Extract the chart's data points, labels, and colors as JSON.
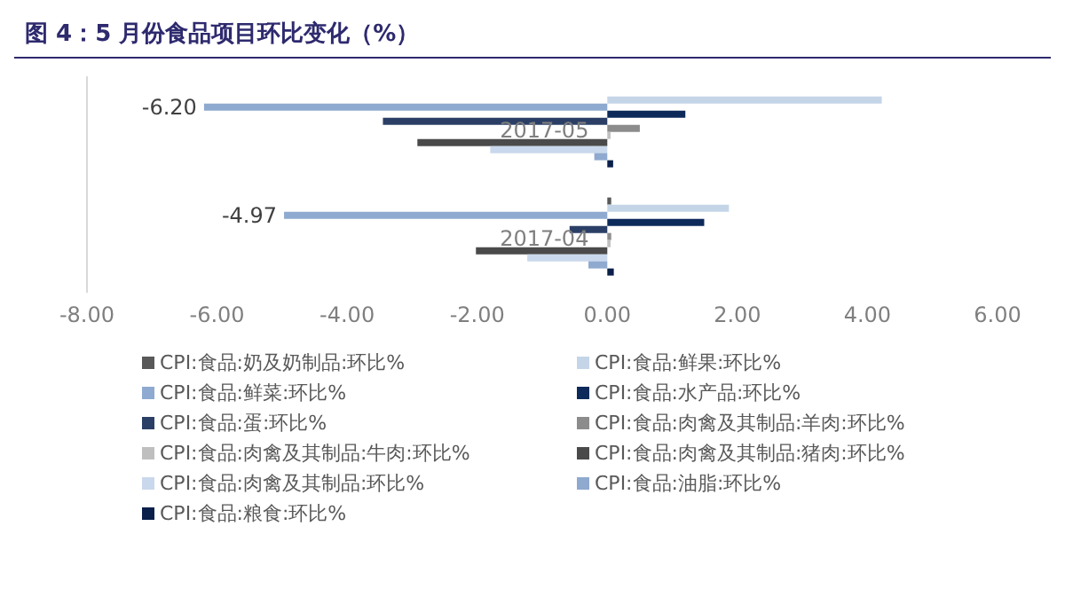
{
  "chart_data": {
    "type": "bar",
    "orientation": "horizontal",
    "title": "图 4：5 月份食品项目环比变化（%）",
    "categories": [
      "2017-05",
      "2017-04"
    ],
    "series": [
      {
        "name": "CPI:食品:奶及奶制品:环比%",
        "color": "#595959",
        "values": [
          0,
          0.06
        ]
      },
      {
        "name": "CPI:食品:鲜果:环比%",
        "color": "#c5d5e8",
        "values": [
          4.22,
          1.87
        ]
      },
      {
        "name": "CPI:食品:鲜菜:环比%",
        "color": "#8eaad0",
        "values": [
          -6.2,
          -4.97
        ],
        "value_labels": [
          "-6.20",
          "-4.97"
        ]
      },
      {
        "name": "CPI:食品:水产品:环比%",
        "color": "#0d2a5a",
        "values": [
          1.2,
          1.49
        ]
      },
      {
        "name": "CPI:食品:蛋:环比%",
        "color": "#2b3f66",
        "values": [
          -3.45,
          -0.58
        ]
      },
      {
        "name": "CPI:食品:肉禽及其制品:羊肉:环比%",
        "color": "#8c8c8c",
        "values": [
          0.5,
          0.06
        ]
      },
      {
        "name": "CPI:食品:肉禽及其制品:牛肉:环比%",
        "color": "#bfbfbf",
        "values": [
          0.05,
          0.05
        ]
      },
      {
        "name": "CPI:食品:肉禽及其制品:猪肉:环比%",
        "color": "#4a4a4a",
        "values": [
          -2.92,
          -2.02
        ]
      },
      {
        "name": "CPI:食品:肉禽及其制品:环比%",
        "color": "#c9d8ec",
        "values": [
          -1.8,
          -1.23
        ]
      },
      {
        "name": "CPI:食品:油脂:环比%",
        "color": "#8fa9cf",
        "values": [
          -0.2,
          -0.29
        ]
      },
      {
        "name": "CPI:食品:粮食:环比%",
        "color": "#0a1f4a",
        "values": [
          0.09,
          0.1
        ]
      }
    ],
    "xlim": [
      -8,
      6
    ],
    "xticks": [
      {
        "value": -8,
        "label": "-8.00"
      },
      {
        "value": -6,
        "label": "-6.00"
      },
      {
        "value": -4,
        "label": "-4.00"
      },
      {
        "value": -2,
        "label": "-2.00"
      },
      {
        "value": 0,
        "label": "0.00"
      },
      {
        "value": 2,
        "label": "2.00"
      },
      {
        "value": 4,
        "label": "4.00"
      },
      {
        "value": 6,
        "label": "6.00"
      }
    ],
    "grid": false,
    "legend": "bottom"
  }
}
